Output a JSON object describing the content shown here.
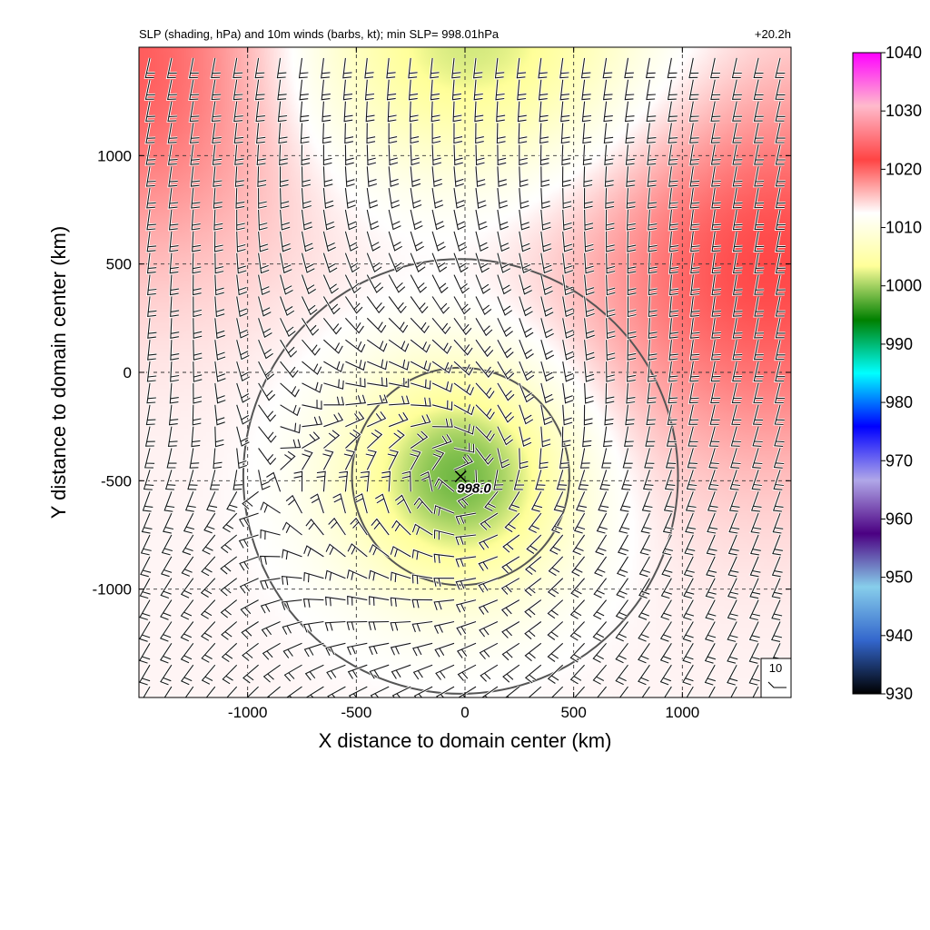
{
  "header": {
    "title": "SLP (shading, hPa) and 10m winds (barbs, kt); min SLP= 998.01hPa",
    "time": "+20.2h"
  },
  "chart_data": {
    "type": "heatmap",
    "title": "SLP (shading, hPa) and 10m winds (barbs, kt); min SLP= 998.01hPa",
    "xlabel": "X distance to domain center (km)",
    "ylabel": "Y distance to domain center (km)",
    "xlim": [
      -1500,
      1500
    ],
    "ylim": [
      -1500,
      1500
    ],
    "xticks": [
      -1000,
      -500,
      0,
      500,
      1000
    ],
    "yticks": [
      1000,
      500,
      0,
      -500,
      -1000
    ],
    "xtick_labels": [
      "-1000",
      "-500",
      "0",
      "500",
      "1000"
    ],
    "ytick_labels": [
      "1000",
      "500",
      "0",
      "-500",
      "-1000"
    ],
    "grid": true,
    "min_slp_hpa": 998.01,
    "center_km": [
      -20,
      -480
    ],
    "center_label": "998.0",
    "range_rings_km": [
      500,
      1000
    ],
    "barb_reference": {
      "label": "10",
      "speed_kt": 10
    },
    "colorbar": {
      "label_values": [
        1040,
        1030,
        1020,
        1010,
        1000,
        990,
        980,
        970,
        960,
        950,
        940,
        930
      ],
      "labels": [
        "1040",
        "1030",
        "1020",
        "1010",
        "1000",
        "990",
        "980",
        "970",
        "960",
        "950",
        "940",
        "930"
      ],
      "min": 930,
      "max": 1040,
      "colors": [
        "#000000",
        "#3366cc",
        "#87ceeb",
        "#4b0082",
        "#b0a7e8",
        "#0000ff",
        "#00ffff",
        "#008000",
        "#ffff99",
        "#ffffff",
        "#ff4444",
        "#ffbbcc",
        "#ff00ff"
      ]
    },
    "field": {
      "low_center_km": [
        -20,
        -480
      ],
      "low_pressure_hpa": 998.0,
      "highs": [
        {
          "center_km": [
            1400,
            500
          ],
          "pressure_hpa": 1021.5
        },
        {
          "center_km": [
            -1500,
            1450
          ],
          "pressure_hpa": 1021
        }
      ],
      "secondary_low": {
        "center_km": [
          0,
          1500
        ],
        "pressure_hpa": 1001
      }
    }
  }
}
